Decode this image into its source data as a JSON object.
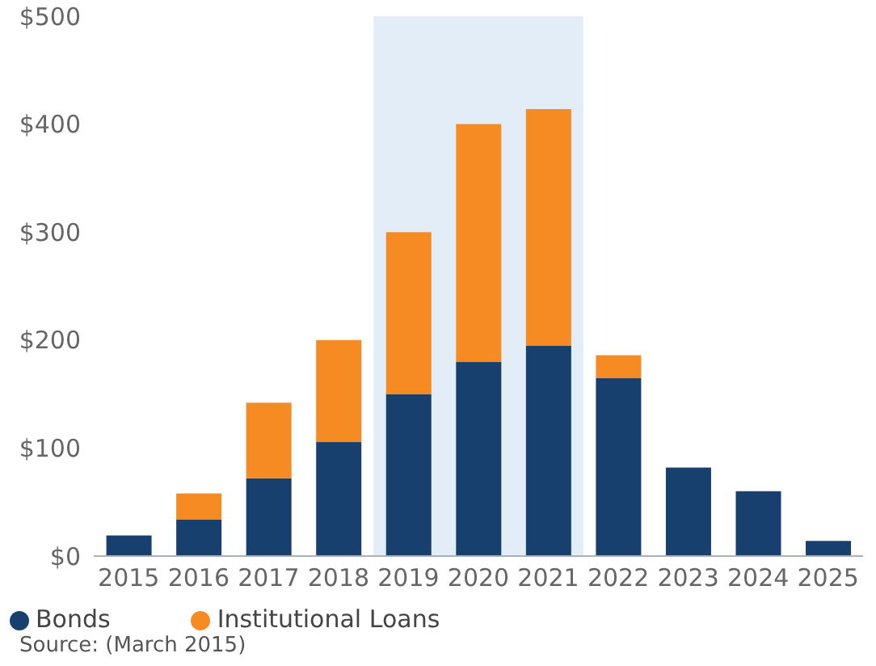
{
  "chart_data": {
    "type": "bar",
    "stacked": true,
    "categories": [
      "2015",
      "2016",
      "2017",
      "2018",
      "2019",
      "2020",
      "2021",
      "2022",
      "2023",
      "2024",
      "2025"
    ],
    "series": [
      {
        "name": "Bonds",
        "color": "#17406f",
        "values": [
          19,
          34,
          72,
          106,
          150,
          180,
          195,
          165,
          82,
          60,
          14
        ]
      },
      {
        "name": "Institutional Loans",
        "color": "#f58b22",
        "values": [
          0,
          24,
          70,
          94,
          150,
          220,
          219,
          21,
          0,
          0,
          0
        ]
      }
    ],
    "ylim": [
      0,
      500
    ],
    "yticks": [
      {
        "value": 0,
        "label": "$0"
      },
      {
        "value": 100,
        "label": "$100"
      },
      {
        "value": 200,
        "label": "$200"
      },
      {
        "value": 300,
        "label": "$300"
      },
      {
        "value": 400,
        "label": "$400"
      },
      {
        "value": 500,
        "label": "$500"
      }
    ],
    "bands": [
      {
        "axis": "x",
        "from": "2019",
        "to": "2021",
        "color": "#e3edf7"
      }
    ],
    "grid": false,
    "legend": "bottom left",
    "annotations": [
      "Source: (March 2015)"
    ]
  }
}
